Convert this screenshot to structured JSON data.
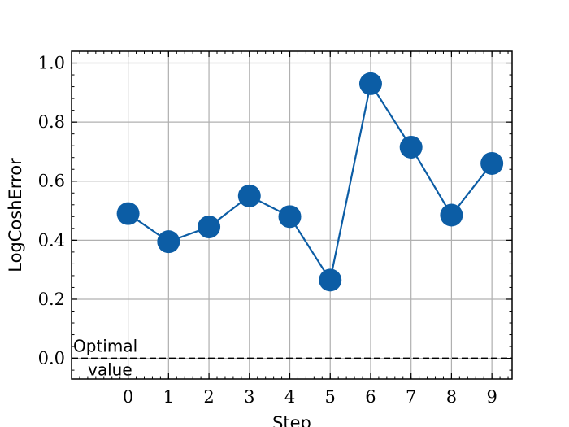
{
  "chart_data": {
    "type": "line",
    "title": "",
    "xlabel": "Step",
    "ylabel": "LogCoshError",
    "x": [
      0,
      1,
      2,
      3,
      4,
      5,
      6,
      7,
      8,
      9
    ],
    "series": [
      {
        "values": [
          0.49,
          0.395,
          0.445,
          0.55,
          0.48,
          0.265,
          0.93,
          0.715,
          0.485,
          0.66
        ],
        "color": "#0C5DA5"
      }
    ],
    "xlim": [
      -1.4,
      9.5
    ],
    "ylim": [
      -0.07,
      1.04
    ],
    "xticks": [
      "0",
      "1",
      "2",
      "3",
      "4",
      "5",
      "6",
      "7",
      "8",
      "9"
    ],
    "yticks": [
      "0.0",
      "0.2",
      "0.4",
      "0.6",
      "0.8",
      "1.0"
    ],
    "ytick_values": [
      0.0,
      0.2,
      0.4,
      0.6,
      0.8,
      1.0
    ],
    "reference_line": {
      "y": 0.0,
      "style": "dashed",
      "color": "#000000"
    },
    "annotation": {
      "lines": [
        "Optimal",
        "value"
      ]
    },
    "grid": true,
    "legend": "none"
  }
}
